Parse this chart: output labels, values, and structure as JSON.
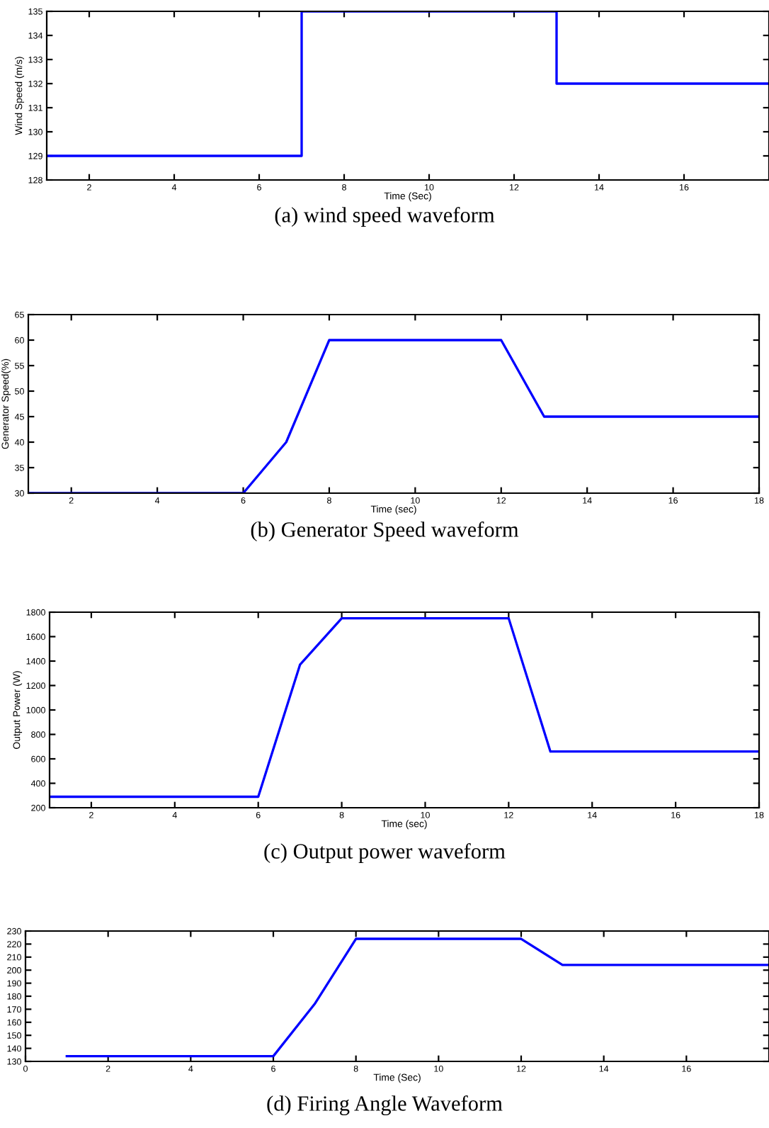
{
  "chart_data": [
    {
      "type": "step",
      "xlabel": "Time (Sec)",
      "ylabel": "Wind Speed (m/s)",
      "annotations": [
        "(a) wind speed waveform"
      ],
      "x": [
        1,
        7,
        13,
        18
      ],
      "series": [
        {
          "color": "#0000ff",
          "values": [
            129,
            135,
            132,
            132
          ]
        }
      ],
      "xlim": [
        1,
        18
      ],
      "xticks": [
        2,
        4,
        6,
        8,
        10,
        12,
        14,
        16
      ],
      "ylim": [
        128,
        135
      ],
      "yticks": [
        128,
        129,
        130,
        131,
        132,
        133,
        134,
        135
      ],
      "grid": false,
      "legend": false
    },
    {
      "type": "line",
      "xlabel": "Time (sec)",
      "ylabel": "Generator Speed(%)",
      "annotations": [
        "(b) Generator Speed waveform"
      ],
      "x": [
        1,
        6,
        7,
        8,
        12,
        13,
        18
      ],
      "series": [
        {
          "color": "#0000ff",
          "values": [
            30,
            30,
            40,
            60,
            60,
            45,
            45
          ]
        }
      ],
      "xlim": [
        1,
        18
      ],
      "xticks": [
        2,
        4,
        6,
        8,
        10,
        12,
        14,
        16,
        18
      ],
      "ylim": [
        30,
        65
      ],
      "yticks": [
        30,
        35,
        40,
        45,
        50,
        55,
        60,
        65
      ],
      "grid": false,
      "legend": false
    },
    {
      "type": "line",
      "xlabel": "Time (sec)",
      "ylabel": "Output Power (W)",
      "annotations": [
        "(c) Output power waveform"
      ],
      "x": [
        1,
        6,
        7,
        8,
        12,
        13,
        18
      ],
      "series": [
        {
          "color": "#0000ff",
          "values": [
            290,
            290,
            1370,
            1750,
            1750,
            660,
            660
          ]
        }
      ],
      "xlim": [
        1,
        18
      ],
      "xticks": [
        2,
        4,
        6,
        8,
        10,
        12,
        14,
        16,
        18
      ],
      "ylim": [
        200,
        1800
      ],
      "yticks": [
        200,
        400,
        600,
        800,
        1000,
        1200,
        1400,
        1600,
        1800
      ],
      "grid": false,
      "legend": false
    },
    {
      "type": "line",
      "xlabel": "Time (Sec)",
      "annotations": [
        "(d) Firing Angle Waveform"
      ],
      "x": [
        1,
        6,
        7,
        8,
        12,
        13,
        18
      ],
      "series": [
        {
          "color": "#0000ff",
          "values": [
            134,
            134,
            174,
            224,
            224,
            204,
            204
          ]
        }
      ],
      "xlim": [
        0,
        18
      ],
      "xticks": [
        0,
        2,
        4,
        6,
        8,
        10,
        12,
        14,
        16
      ],
      "ylim": [
        130,
        230
      ],
      "yticks": [
        130,
        140,
        150,
        160,
        170,
        180,
        190,
        200,
        210,
        220,
        230
      ],
      "grid": false,
      "legend": false
    }
  ]
}
